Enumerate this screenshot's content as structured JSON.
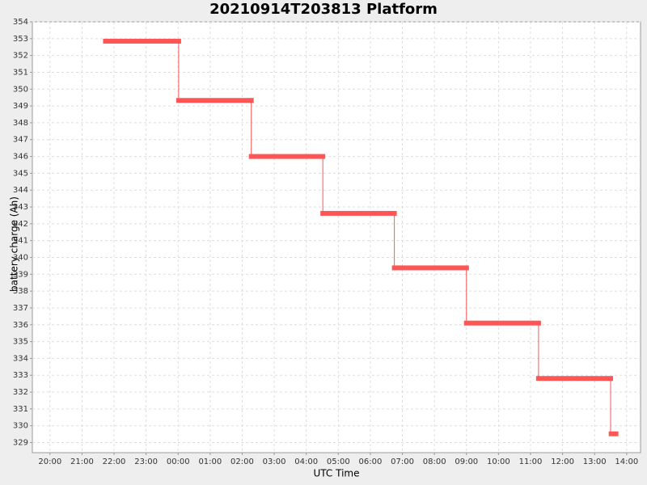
{
  "chart_data": {
    "type": "step",
    "title": "20210914T203813 Platform",
    "x_label": "UTC Time",
    "y_label": "battery charge (Ah)",
    "x_start": [
      "21:44",
      "00:01",
      "02:17",
      "04:31",
      "06:45",
      "09:00",
      "11:15",
      "13:31"
    ],
    "x_end": [
      "00:01",
      "02:17",
      "04:31",
      "06:45",
      "09:00",
      "11:15",
      "13:30",
      "13:40"
    ],
    "values": [
      352.85,
      349.33,
      346.0,
      342.62,
      339.38,
      336.1,
      332.81,
      329.52
    ],
    "color": "#ff5555",
    "xlim": [
      "19:27",
      "14:26"
    ],
    "xticks": [
      "20:00",
      "21:00",
      "22:00",
      "23:00",
      "00:00",
      "01:00",
      "02:00",
      "03:00",
      "04:00",
      "05:00",
      "06:00",
      "07:00",
      "08:00",
      "09:00",
      "10:00",
      "11:00",
      "12:00",
      "13:00",
      "14:00"
    ],
    "ylim": [
      328.4,
      354
    ],
    "yticks": [
      329,
      330,
      331,
      332,
      333,
      334,
      335,
      336,
      337,
      338,
      339,
      340,
      341,
      342,
      343,
      344,
      345,
      346,
      347,
      348,
      349,
      350,
      351,
      352,
      353,
      354
    ],
    "grid": true
  }
}
